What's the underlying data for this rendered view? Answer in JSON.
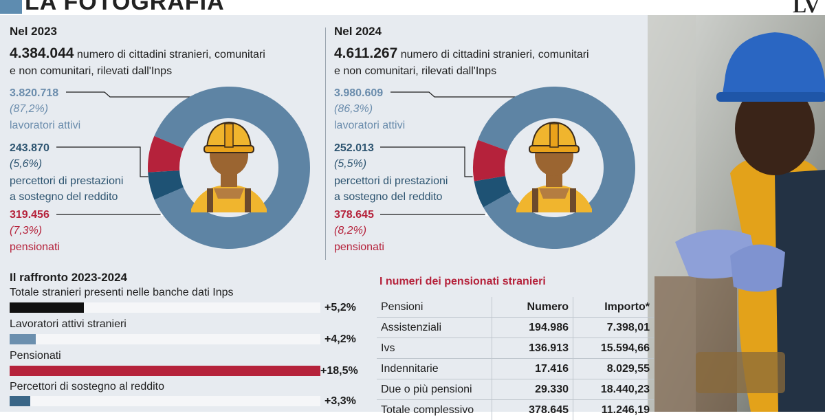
{
  "header": {
    "title": "LA FOTOGRAFIA",
    "logo": "LV"
  },
  "year2023": {
    "heading": "Nel 2023",
    "total": "4.384.044",
    "total_desc_1": "numero di cittadini stranieri, comunitari",
    "total_desc_2": "e non comunitari, rilevati dall'Inps",
    "active": {
      "value": "3.820.718",
      "pct": "(87,2%)",
      "label": "lavoratori attivi"
    },
    "support": {
      "value": "243.870",
      "pct": "(5,6%)",
      "label_1": "percettori di prestazioni",
      "label_2": "a sostegno del reddito"
    },
    "pension": {
      "value": "319.456",
      "pct": "(7,3%)",
      "label": "pensionati"
    }
  },
  "year2024": {
    "heading": "Nel 2024",
    "total": "4.611.267",
    "total_desc_1": "numero di cittadini stranieri, comunitari",
    "total_desc_2": "e non comunitari, rilevati dall'Inps",
    "active": {
      "value": "3.980.609",
      "pct": "(86,3%)",
      "label": "lavoratori attivi"
    },
    "support": {
      "value": "252.013",
      "pct": "(5,5%)",
      "label_1": "percettori di prestazioni",
      "label_2": "a sostegno del reddito"
    },
    "pension": {
      "value": "378.645",
      "pct": "(8,2%)",
      "label": "pensionati"
    }
  },
  "comparison": {
    "title": "Il raffronto 2023-2024",
    "rows": [
      {
        "label": "Totale stranieri presenti nelle banche dati Inps",
        "pct": "+5,2%"
      },
      {
        "label": "Lavoratori attivi stranieri",
        "pct": "+4,2%"
      },
      {
        "label": "Pensionati",
        "pct": "+18,5%"
      },
      {
        "label": "Percettori di sostegno al reddito",
        "pct": "+3,3%"
      }
    ]
  },
  "pension_table": {
    "title": "I numeri dei pensionati stranieri",
    "headers": [
      "Pensioni",
      "Numero",
      "Importo*"
    ],
    "rows": [
      [
        "Assistenziali",
        "194.986",
        "7.398,01"
      ],
      [
        "Ivs",
        "136.913",
        "15.594,66"
      ],
      [
        "Indennitarie",
        "17.416",
        "8.029,55"
      ],
      [
        "Due o più  pensioni",
        "29.330",
        "18.440,23"
      ],
      [
        "Totale complessivo",
        "378.645",
        "11.246,19"
      ]
    ]
  },
  "colors": {
    "active": "#5e84a4",
    "support": "#1e5274",
    "pension": "#b5223b",
    "total_bar": "#111111",
    "worker_bar": "#6b8fae",
    "support_bar": "#3a6687",
    "panel": "#e7ebf0"
  },
  "chart_data": [
    {
      "type": "pie",
      "title": "Nel 2023",
      "categories": [
        "lavoratori attivi",
        "percettori di prestazioni a sostegno del reddito",
        "pensionati"
      ],
      "values": [
        3820718,
        243870,
        319456
      ],
      "percent": [
        87.2,
        5.6,
        7.3
      ]
    },
    {
      "type": "pie",
      "title": "Nel 2024",
      "categories": [
        "lavoratori attivi",
        "percettori di prestazioni a sostegno del reddito",
        "pensionati"
      ],
      "values": [
        3980609,
        252013,
        378645
      ],
      "percent": [
        86.3,
        5.5,
        8.2
      ]
    },
    {
      "type": "bar",
      "title": "Il raffronto 2023-2024",
      "categories": [
        "Totale stranieri presenti nelle banche dati Inps",
        "Lavoratori attivi stranieri",
        "Pensionati",
        "Percettori di sostegno al reddito"
      ],
      "values": [
        5.2,
        4.2,
        18.5,
        3.3
      ],
      "ylabel": "%"
    },
    {
      "type": "table",
      "title": "I numeri dei pensionati stranieri",
      "columns": [
        "Pensioni",
        "Numero",
        "Importo*"
      ],
      "rows": [
        [
          "Assistenziali",
          194986,
          7398.01
        ],
        [
          "Ivs",
          136913,
          15594.66
        ],
        [
          "Indennitarie",
          17416,
          8029.55
        ],
        [
          "Due o più  pensioni",
          29330,
          18440.23
        ],
        [
          "Totale complessivo",
          378645,
          11246.19
        ]
      ]
    }
  ]
}
